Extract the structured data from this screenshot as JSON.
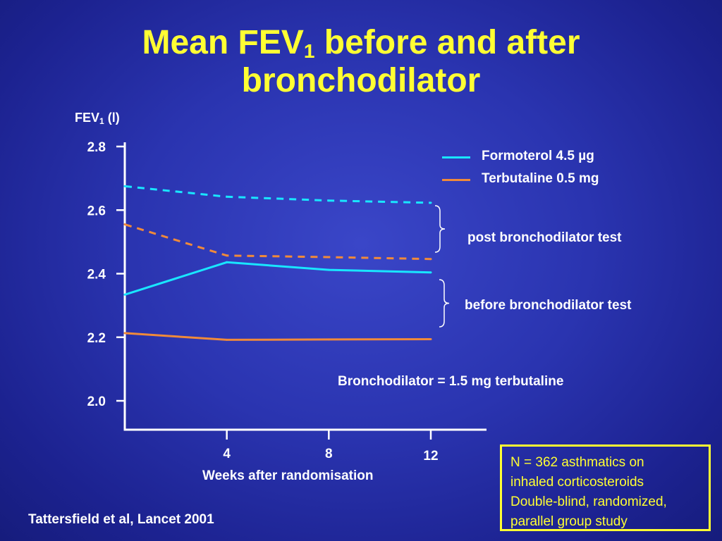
{
  "title": {
    "line1_pre": "Mean FEV",
    "line1_sub": "1",
    "line1_post": " before and after",
    "line2": "bronchodilator"
  },
  "y_axis_label": {
    "pre": "FEV",
    "sub": "1",
    "post": " (l)"
  },
  "x_axis_label": "Weeks after randomisation",
  "legend": [
    {
      "label": "Formoterol 4.5 µg",
      "color": "#19e6ff"
    },
    {
      "label": "Terbutaline 0.5 mg",
      "color": "#f08a3a"
    }
  ],
  "annotations": {
    "post": "post bronchodilator test",
    "before": "before bronchodilator test",
    "bronchodilator": "Bronchodilator = 1.5 mg terbutaline"
  },
  "citation": "Tattersfield et al, Lancet 2001",
  "study_box": {
    "lines": [
      "N = 362  asthmatics on",
      "inhaled corticosteroids",
      "Double-blind, randomized,",
      "parallel group study"
    ],
    "color": "#ffff33"
  },
  "chart_data": {
    "type": "line",
    "x": [
      0,
      4,
      8,
      12
    ],
    "xticks": [
      "4",
      "8",
      "12"
    ],
    "yticks": [
      "2.0",
      "2.2",
      "2.4",
      "2.6",
      "2.8"
    ],
    "ylim": [
      2.0,
      2.8
    ],
    "xlim": [
      0,
      12
    ],
    "series": [
      {
        "name": "Formoterol 4.5 µg",
        "test": "post bronchodilator test",
        "color": "#19e6ff",
        "dashed": true,
        "values": [
          2.675,
          2.642,
          2.63,
          2.623
        ]
      },
      {
        "name": "Terbutaline 0.5 mg",
        "test": "post bronchodilator test",
        "color": "#f08a3a",
        "dashed": true,
        "values": [
          2.555,
          2.457,
          2.452,
          2.446
        ]
      },
      {
        "name": "Formoterol 4.5 µg",
        "test": "before bronchodilator test",
        "color": "#19e6ff",
        "dashed": false,
        "values": [
          2.334,
          2.436,
          2.412,
          2.404
        ]
      },
      {
        "name": "Terbutaline 0.5 mg",
        "test": "before bronchodilator test",
        "color": "#f08a3a",
        "dashed": false,
        "values": [
          2.213,
          2.192,
          2.193,
          2.194
        ]
      }
    ],
    "grid": false,
    "legend_position": "top-right"
  }
}
